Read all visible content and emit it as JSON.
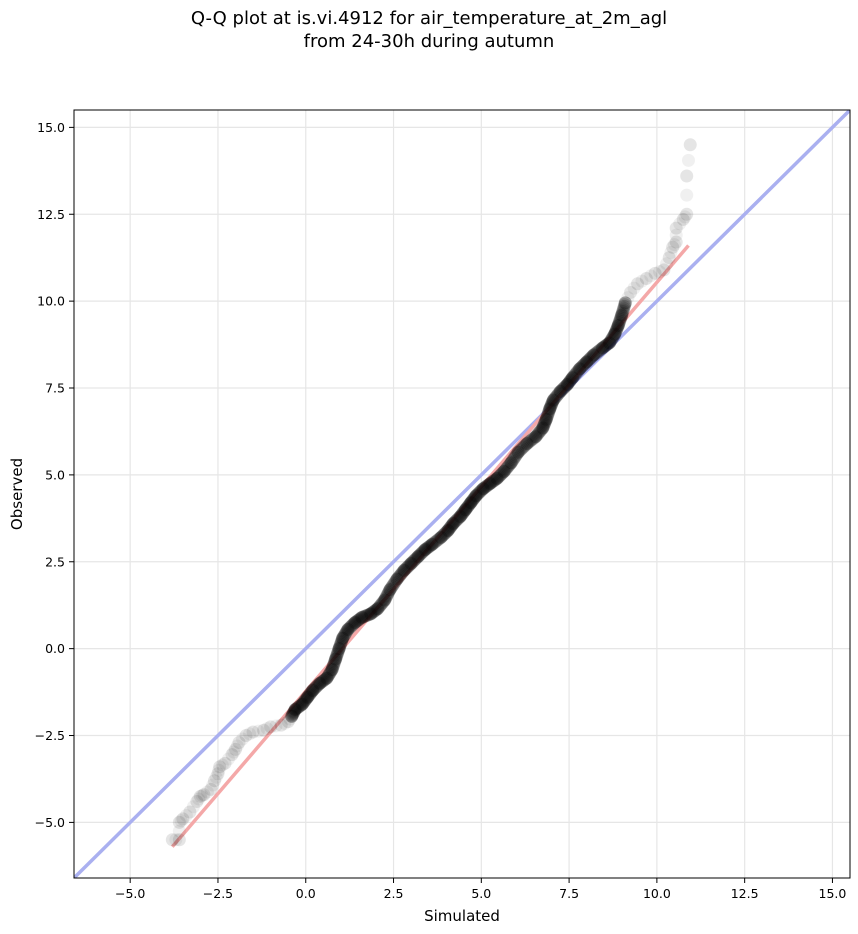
{
  "chart_data": {
    "type": "scatter",
    "title": "Q-Q plot at is.vi.4912 for air_temperature_at_2m_agl",
    "subtitle": "from 24-30h during autumn",
    "xlabel": "Simulated",
    "ylabel": "Observed",
    "xlim": [
      -6.6,
      15.5
    ],
    "ylim": [
      -6.6,
      15.5
    ],
    "xticks": [
      "−5.0",
      "−2.5",
      "0.0",
      "2.5",
      "5.0",
      "7.5",
      "10.0",
      "12.5",
      "15.0"
    ],
    "yticks": [
      "−5.0",
      "−2.5",
      "0.0",
      "2.5",
      "5.0",
      "7.5",
      "10.0",
      "12.5",
      "15.0"
    ],
    "tick_values": [
      -5,
      -2.5,
      0,
      2.5,
      5,
      7.5,
      10,
      12.5,
      15
    ],
    "grid": true,
    "identity_line_color": "#aab0f0",
    "fit_line": {
      "color": "#f4a8a8",
      "x": [
        -3.8,
        10.9
      ],
      "y": [
        -5.7,
        11.6
      ]
    },
    "point_color": "#000000",
    "quantile_points": [
      [
        -3.8,
        -5.5
      ],
      [
        -3.6,
        -5.5
      ],
      [
        -3.6,
        -5.0
      ],
      [
        -3.5,
        -4.9
      ],
      [
        -3.3,
        -4.7
      ],
      [
        -3.1,
        -4.4
      ],
      [
        -3.0,
        -4.25
      ],
      [
        -2.9,
        -4.2
      ],
      [
        -2.7,
        -4.05
      ],
      [
        -2.6,
        -3.8
      ],
      [
        -2.5,
        -3.6
      ],
      [
        -2.45,
        -3.4
      ],
      [
        -2.3,
        -3.3
      ],
      [
        -2.1,
        -3.05
      ],
      [
        -2.0,
        -2.9
      ],
      [
        -1.9,
        -2.7
      ],
      [
        -1.7,
        -2.5
      ],
      [
        -1.5,
        -2.4
      ],
      [
        -1.2,
        -2.35
      ],
      [
        -1.0,
        -2.25
      ],
      [
        -0.7,
        -2.2
      ],
      [
        -0.5,
        -2.1
      ],
      [
        -0.4,
        -1.95
      ],
      [
        -0.3,
        -1.75
      ],
      [
        -0.1,
        -1.6
      ],
      [
        0.05,
        -1.4
      ],
      [
        0.2,
        -1.2
      ],
      [
        0.4,
        -1.0
      ],
      [
        0.6,
        -0.85
      ],
      [
        0.75,
        -0.6
      ],
      [
        0.85,
        -0.3
      ],
      [
        0.95,
        0.0
      ],
      [
        1.05,
        0.3
      ],
      [
        1.2,
        0.55
      ],
      [
        1.4,
        0.75
      ],
      [
        1.6,
        0.9
      ],
      [
        1.85,
        1.0
      ],
      [
        2.05,
        1.15
      ],
      [
        2.25,
        1.4
      ],
      [
        2.4,
        1.7
      ],
      [
        2.6,
        2.0
      ],
      [
        2.8,
        2.25
      ],
      [
        3.0,
        2.45
      ],
      [
        3.2,
        2.65
      ],
      [
        3.4,
        2.85
      ],
      [
        3.6,
        3.0
      ],
      [
        3.85,
        3.2
      ],
      [
        4.05,
        3.4
      ],
      [
        4.2,
        3.6
      ],
      [
        4.4,
        3.8
      ],
      [
        4.55,
        4.0
      ],
      [
        4.7,
        4.2
      ],
      [
        4.85,
        4.4
      ],
      [
        5.05,
        4.6
      ],
      [
        5.25,
        4.75
      ],
      [
        5.45,
        4.9
      ],
      [
        5.65,
        5.1
      ],
      [
        5.85,
        5.35
      ],
      [
        6.05,
        5.65
      ],
      [
        6.3,
        5.9
      ],
      [
        6.55,
        6.1
      ],
      [
        6.75,
        6.35
      ],
      [
        6.85,
        6.6
      ],
      [
        6.95,
        6.9
      ],
      [
        7.05,
        7.15
      ],
      [
        7.25,
        7.4
      ],
      [
        7.45,
        7.6
      ],
      [
        7.6,
        7.8
      ],
      [
        7.8,
        8.05
      ],
      [
        8.0,
        8.25
      ],
      [
        8.2,
        8.45
      ],
      [
        8.45,
        8.65
      ],
      [
        8.65,
        8.8
      ],
      [
        8.8,
        9.05
      ],
      [
        8.9,
        9.3
      ],
      [
        9.0,
        9.6
      ],
      [
        9.1,
        9.95
      ],
      [
        9.25,
        10.25
      ],
      [
        9.45,
        10.5
      ],
      [
        9.7,
        10.65
      ],
      [
        9.95,
        10.8
      ],
      [
        10.2,
        10.9
      ],
      [
        10.35,
        11.25
      ],
      [
        10.45,
        11.55
      ],
      [
        10.55,
        11.7
      ],
      [
        10.55,
        12.1
      ],
      [
        10.75,
        12.35
      ],
      [
        10.85,
        12.5
      ],
      [
        10.85,
        13.6
      ],
      [
        10.95,
        14.5
      ]
    ]
  }
}
